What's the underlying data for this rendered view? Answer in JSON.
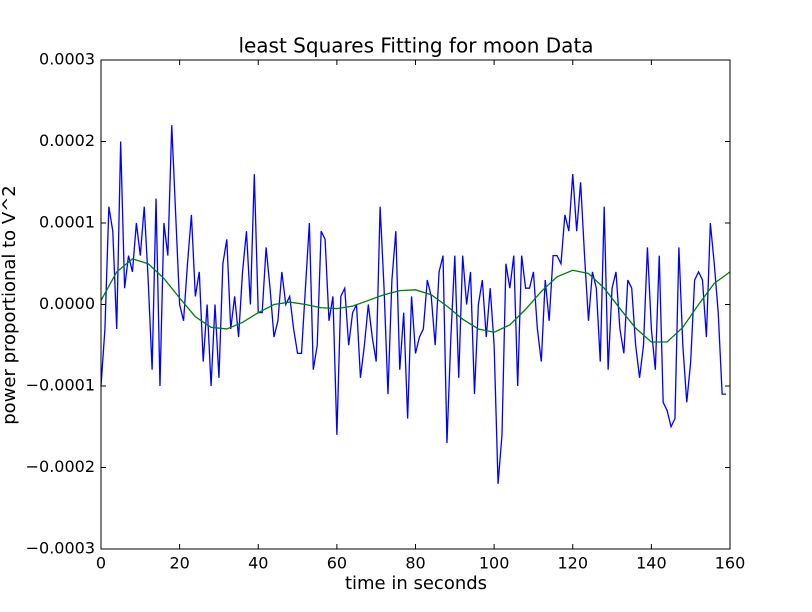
{
  "chart_data": {
    "type": "line",
    "title": "least Squares Fitting for moon Data",
    "x_label": "time in seconds",
    "y_label": "power proportional to V^2",
    "xlim": [
      0,
      160
    ],
    "xticks": [
      0,
      20,
      40,
      60,
      80,
      100,
      120,
      140,
      160
    ],
    "ylim": [
      -0.0003,
      0.0003
    ],
    "yticks": [
      {
        "value": -0.0003,
        "label": "−0.0003"
      },
      {
        "value": -0.0002,
        "label": "−0.0002"
      },
      {
        "value": -0.0001,
        "label": "−0.0001"
      },
      {
        "value": 0,
        "label": "0.0000"
      },
      {
        "value": 0.0001,
        "label": "0.0001"
      },
      {
        "value": 0.0002,
        "label": "0.0002"
      },
      {
        "value": 0.0003,
        "label": "0.0003"
      }
    ],
    "grid": false,
    "series": [
      {
        "color": "#0000ff",
        "x": [
          0,
          1,
          2,
          3,
          4,
          5,
          6,
          7,
          8,
          9,
          10,
          11,
          12,
          13,
          14,
          15,
          16,
          17,
          18,
          19,
          20,
          21,
          22,
          23,
          24,
          25,
          26,
          27,
          28,
          29,
          30,
          31,
          32,
          33,
          34,
          35,
          36,
          37,
          38,
          39,
          40,
          41,
          42,
          43,
          44,
          45,
          46,
          47,
          48,
          49,
          50,
          51,
          52,
          53,
          54,
          55,
          56,
          57,
          58,
          59,
          60,
          61,
          62,
          63,
          64,
          65,
          66,
          67,
          68,
          69,
          70,
          71,
          72,
          73,
          74,
          75,
          76,
          77,
          78,
          79,
          80,
          81,
          82,
          83,
          84,
          85,
          86,
          87,
          88,
          89,
          90,
          91,
          92,
          93,
          94,
          95,
          96,
          97,
          98,
          99,
          100,
          101,
          102,
          103,
          104,
          105,
          106,
          107,
          108,
          109,
          110,
          111,
          112,
          113,
          114,
          115,
          116,
          117,
          118,
          119,
          120,
          121,
          122,
          123,
          124,
          125,
          126,
          127,
          128,
          129,
          130,
          131,
          132,
          133,
          134,
          135,
          136,
          137,
          138,
          139,
          140,
          141,
          142,
          143,
          144,
          145,
          146,
          147,
          148,
          149,
          150,
          151,
          152,
          153,
          154,
          155,
          156,
          157,
          158,
          159
        ],
        "values": [
          -0.0001,
          -3e-05,
          0.00012,
          9e-05,
          -3e-05,
          0.0002,
          2e-05,
          6e-05,
          4e-05,
          0.0001,
          6e-05,
          0.00012,
          3e-05,
          -8e-05,
          0.00013,
          -0.0001,
          0.0001,
          6e-05,
          0.00022,
          0.00011,
          0,
          -2e-05,
          5e-05,
          0.00011,
          1e-05,
          4e-05,
          -7e-05,
          0,
          -0.0001,
          0,
          -9e-05,
          5e-05,
          8e-05,
          -3e-05,
          1e-05,
          -4e-05,
          4e-05,
          9e-05,
          0,
          0.00016,
          -1e-05,
          -1e-05,
          7e-05,
          2e-05,
          -4e-05,
          -2e-05,
          4e-05,
          0,
          1e-05,
          -3e-05,
          -6e-05,
          -6e-05,
          2e-05,
          0.0001,
          -8e-05,
          -5e-05,
          9e-05,
          8e-05,
          -2e-05,
          1e-05,
          -0.00016,
          1e-05,
          2e-05,
          -5e-05,
          -1e-05,
          0,
          -9e-05,
          -5e-05,
          0,
          -4e-05,
          -7e-05,
          0.00012,
          2e-05,
          -0.00011,
          3e-05,
          9e-05,
          -8e-05,
          -1e-05,
          -0.00014,
          1e-05,
          -6e-05,
          -4e-05,
          -3e-05,
          3e-05,
          1e-05,
          -5e-05,
          4e-05,
          6e-05,
          -0.00017,
          -4e-05,
          6e-05,
          -9e-05,
          6e-05,
          0,
          4e-05,
          -0.00011,
          0,
          3e-05,
          -4e-05,
          2e-05,
          -5e-05,
          -0.00022,
          -0.00016,
          5e-05,
          2e-05,
          6e-05,
          -0.0001,
          6e-05,
          2e-05,
          2e-05,
          4e-05,
          -3e-05,
          -7e-05,
          3e-05,
          -2e-05,
          6e-05,
          6e-05,
          5e-05,
          0.00011,
          9e-05,
          0.00016,
          9e-05,
          0.00015,
          6e-05,
          -2e-05,
          4e-05,
          2e-05,
          -7e-05,
          0.00012,
          -8e-05,
          2e-05,
          4e-05,
          -3e-05,
          -6e-05,
          3e-05,
          2e-05,
          -5e-05,
          -9e-05,
          -5e-05,
          7e-05,
          -3e-05,
          -8e-05,
          6e-05,
          -0.00012,
          -0.00013,
          -0.00015,
          -0.00014,
          7e-05,
          -5e-05,
          -0.00012,
          -7e-05,
          3e-05,
          4e-05,
          3e-05,
          -4e-05,
          0.0001,
          5e-05,
          -1e-05,
          -0.00011,
          -0.00011
        ]
      },
      {
        "color": "#008000",
        "x": [
          0,
          4,
          8,
          12,
          16,
          20,
          24,
          28,
          32,
          36,
          40,
          44,
          48,
          52,
          56,
          60,
          64,
          68,
          72,
          76,
          80,
          84,
          88,
          92,
          96,
          100,
          104,
          108,
          112,
          116,
          120,
          124,
          128,
          132,
          136,
          140,
          144,
          148,
          152,
          156,
          160
        ],
        "values": [
          5e-06,
          4e-05,
          5.6e-05,
          5e-05,
          3.2e-05,
          8e-06,
          -1.5e-05,
          -2.8e-05,
          -3e-05,
          -2.2e-05,
          -1e-05,
          0,
          3e-06,
          0,
          -4e-06,
          -5e-06,
          -2e-06,
          5e-06,
          1.2e-05,
          1.7e-05,
          1.8e-05,
          1.2e-05,
          -2e-06,
          -1.8e-05,
          -3e-05,
          -3.4e-05,
          -2.5e-05,
          -6e-06,
          1.6e-05,
          3.4e-05,
          4.2e-05,
          3.8e-05,
          2e-05,
          -5e-06,
          -2.9e-05,
          -4.6e-05,
          -4.6e-05,
          -2.8e-05,
          0,
          2.6e-05,
          4e-05
        ]
      }
    ]
  }
}
